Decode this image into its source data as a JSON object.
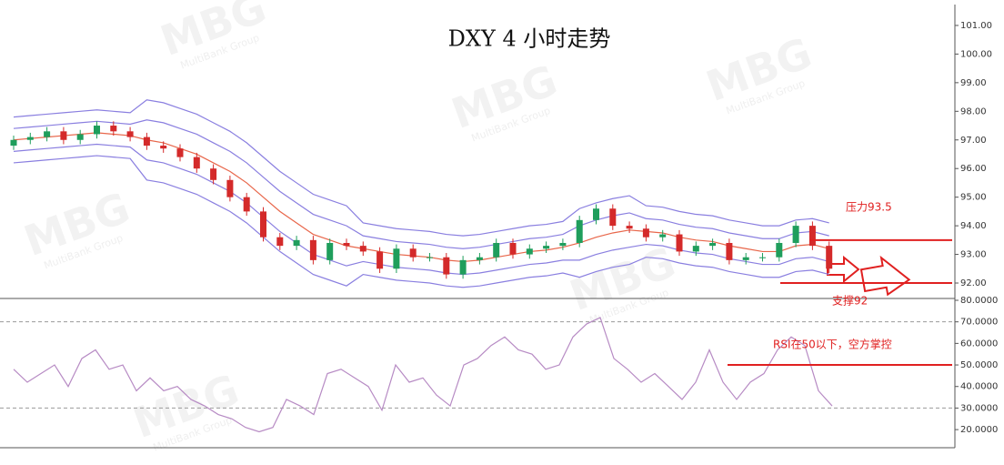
{
  "watermark": {
    "logo": "MBG",
    "company": "MultiBank Group"
  },
  "chart_data": [
    {
      "type": "candlestick",
      "title": "DXY 4 小时走势",
      "open": [
        96.8,
        97.0,
        97.1,
        97.3,
        97.0,
        97.2,
        97.5,
        97.3,
        97.1,
        96.8,
        96.7,
        96.4,
        96.0,
        95.6,
        95.0,
        94.5,
        93.6,
        93.3,
        93.5,
        92.8,
        93.4,
        93.3,
        93.1,
        92.5,
        93.2,
        92.9,
        92.9,
        92.3,
        92.8,
        92.9,
        93.4,
        93.0,
        93.2,
        93.3,
        93.4,
        94.2,
        94.6,
        94.0,
        93.9,
        93.6,
        93.7,
        93.1,
        93.3,
        93.4,
        92.8,
        92.9,
        92.9,
        93.4,
        94.0,
        93.3
      ],
      "high": [
        97.15,
        97.25,
        97.45,
        97.45,
        97.35,
        97.65,
        97.65,
        97.45,
        97.25,
        96.95,
        96.85,
        96.55,
        96.15,
        95.75,
        95.15,
        94.65,
        93.75,
        93.65,
        93.65,
        93.55,
        93.55,
        93.45,
        93.25,
        93.35,
        93.35,
        93.05,
        93.05,
        92.95,
        93.05,
        93.55,
        93.55,
        93.35,
        93.45,
        93.55,
        94.35,
        94.75,
        94.75,
        94.15,
        94.05,
        93.85,
        93.85,
        93.45,
        93.55,
        93.55,
        93.05,
        93.05,
        93.55,
        94.15,
        94.15,
        93.45
      ],
      "low": [
        96.65,
        96.85,
        96.95,
        96.85,
        96.85,
        97.05,
        97.15,
        96.95,
        96.65,
        96.55,
        96.25,
        95.85,
        95.45,
        94.85,
        94.35,
        93.45,
        93.15,
        93.15,
        92.65,
        92.65,
        93.15,
        92.95,
        92.35,
        92.35,
        92.75,
        92.75,
        92.15,
        92.15,
        92.65,
        92.75,
        92.85,
        92.85,
        93.05,
        93.15,
        93.25,
        94.05,
        93.85,
        93.75,
        93.45,
        93.45,
        92.95,
        92.95,
        93.15,
        92.65,
        92.65,
        92.75,
        92.75,
        93.25,
        93.15,
        92.35
      ],
      "close": [
        97.0,
        97.1,
        97.3,
        97.0,
        97.2,
        97.5,
        97.3,
        97.1,
        96.8,
        96.7,
        96.4,
        96.0,
        95.6,
        95.0,
        94.5,
        93.6,
        93.3,
        93.5,
        92.8,
        93.4,
        93.3,
        93.1,
        92.5,
        93.2,
        92.9,
        92.9,
        92.3,
        92.8,
        92.9,
        93.4,
        93.0,
        93.2,
        93.3,
        93.4,
        94.2,
        94.6,
        94.0,
        93.9,
        93.6,
        93.7,
        93.1,
        93.3,
        93.4,
        92.8,
        92.9,
        92.9,
        93.4,
        94.0,
        93.3,
        92.5
      ],
      "up_color": "#1f9e5c",
      "down_color": "#d42a2a",
      "series": [
        {
          "color": "#e8664a",
          "values": [
            97.0,
            97.05,
            97.1,
            97.15,
            97.2,
            97.25,
            97.2,
            97.15,
            97.0,
            96.9,
            96.7,
            96.5,
            96.2,
            95.9,
            95.5,
            95.0,
            94.5,
            94.1,
            93.7,
            93.5,
            93.3,
            93.2,
            93.1,
            93.0,
            92.95,
            92.9,
            92.8,
            92.75,
            92.8,
            92.9,
            93.0,
            93.1,
            93.15,
            93.25,
            93.4,
            93.6,
            93.75,
            93.85,
            93.8,
            93.75,
            93.6,
            93.5,
            93.45,
            93.3,
            93.2,
            93.1,
            93.1,
            93.3,
            93.35,
            93.2
          ]
        },
        {
          "color": "#8a7fe0",
          "values": [
            97.4,
            97.45,
            97.5,
            97.55,
            97.6,
            97.65,
            97.6,
            97.55,
            97.7,
            97.6,
            97.4,
            97.2,
            96.9,
            96.6,
            96.2,
            95.7,
            95.2,
            94.8,
            94.4,
            94.2,
            94.0,
            93.65,
            93.55,
            93.45,
            93.4,
            93.35,
            93.25,
            93.2,
            93.25,
            93.35,
            93.45,
            93.55,
            93.6,
            93.7,
            94.0,
            94.2,
            94.35,
            94.45,
            94.25,
            94.2,
            94.05,
            93.95,
            93.9,
            93.75,
            93.65,
            93.55,
            93.55,
            93.75,
            93.8,
            93.65
          ]
        },
        {
          "color": "#8a7fe0",
          "values": [
            96.6,
            96.65,
            96.7,
            96.75,
            96.8,
            96.85,
            96.8,
            96.75,
            96.3,
            96.2,
            96.0,
            95.8,
            95.5,
            95.2,
            94.8,
            94.3,
            93.8,
            93.4,
            93.0,
            92.8,
            92.6,
            92.75,
            92.65,
            92.55,
            92.5,
            92.45,
            92.35,
            92.3,
            92.35,
            92.45,
            92.55,
            92.65,
            92.7,
            92.8,
            92.8,
            93.0,
            93.15,
            93.25,
            93.35,
            93.3,
            93.15,
            93.05,
            93.0,
            92.85,
            92.75,
            92.65,
            92.65,
            92.85,
            92.9,
            92.75
          ]
        },
        {
          "color": "#8a7fe0",
          "values": [
            97.8,
            97.85,
            97.9,
            97.95,
            98.0,
            98.05,
            98.0,
            97.95,
            98.4,
            98.3,
            98.1,
            97.9,
            97.6,
            97.3,
            96.9,
            96.4,
            95.9,
            95.5,
            95.1,
            94.9,
            94.7,
            94.1,
            94.0,
            93.9,
            93.85,
            93.8,
            93.7,
            93.65,
            93.7,
            93.8,
            93.9,
            94.0,
            94.05,
            94.15,
            94.6,
            94.8,
            94.95,
            95.05,
            94.7,
            94.65,
            94.5,
            94.4,
            94.35,
            94.2,
            94.1,
            94.0,
            94.0,
            94.2,
            94.25,
            94.1
          ]
        },
        {
          "color": "#8a7fe0",
          "values": [
            96.2,
            96.25,
            96.3,
            96.35,
            96.4,
            96.45,
            96.4,
            96.35,
            95.6,
            95.5,
            95.3,
            95.1,
            94.8,
            94.5,
            94.1,
            93.6,
            93.1,
            92.7,
            92.3,
            92.1,
            91.9,
            92.3,
            92.2,
            92.1,
            92.05,
            92.0,
            91.9,
            91.85,
            91.9,
            92.0,
            92.1,
            92.2,
            92.25,
            92.35,
            92.2,
            92.4,
            92.55,
            92.65,
            92.9,
            92.85,
            92.7,
            92.6,
            92.55,
            92.4,
            92.3,
            92.2,
            92.2,
            92.4,
            92.45,
            92.3
          ]
        }
      ],
      "ylim": [
        91.46,
        101.73
      ],
      "yticks": [
        {
          "value": 92,
          "label": "92.00"
        },
        {
          "value": 93,
          "label": "93.00"
        },
        {
          "value": 94,
          "label": "94.00"
        },
        {
          "value": 95,
          "label": "95.00"
        },
        {
          "value": 96,
          "label": "96.00"
        },
        {
          "value": 97,
          "label": "97.00"
        },
        {
          "value": 98,
          "label": "98.00"
        },
        {
          "value": 99,
          "label": "99.00"
        },
        {
          "value": 100,
          "label": "100.00"
        },
        {
          "value": 101,
          "label": "101.00"
        }
      ],
      "annotations": [
        {
          "text": "压力93.5",
          "value": 93.5,
          "color": "#e02020"
        },
        {
          "text": "支撑92",
          "value": 92,
          "color": "#e02020"
        }
      ]
    },
    {
      "type": "line",
      "values": [
        48,
        42,
        46,
        50,
        40,
        53,
        57,
        48,
        50,
        38,
        44,
        38,
        40,
        34,
        31,
        27,
        25,
        21,
        19,
        21,
        34,
        31,
        27,
        46,
        48,
        44,
        40,
        29,
        50,
        42,
        44,
        36,
        31,
        50,
        53,
        59,
        63,
        57,
        55,
        48,
        50,
        63,
        69,
        72,
        53,
        48,
        42,
        46,
        40,
        34,
        42,
        57,
        42,
        34,
        42,
        46,
        57,
        63,
        59,
        38,
        31
      ],
      "color": "#b78bc4",
      "ylim": [
        11.6,
        80
      ],
      "yticks": [
        {
          "value": 20,
          "label": "20.0000"
        },
        {
          "value": 30,
          "label": "30.0000"
        },
        {
          "value": 40,
          "label": "40.0000"
        },
        {
          "value": 50,
          "label": "50.0000"
        },
        {
          "value": 60,
          "label": "60.0000"
        },
        {
          "value": 70,
          "label": "70.0000"
        },
        {
          "value": 80,
          "label": "80.0000"
        }
      ],
      "dashed_levels": [
        70,
        30
      ],
      "annotations": [
        {
          "text": "RSI在50以下，空方掌控",
          "value": 50,
          "color": "#e02020"
        }
      ]
    }
  ]
}
